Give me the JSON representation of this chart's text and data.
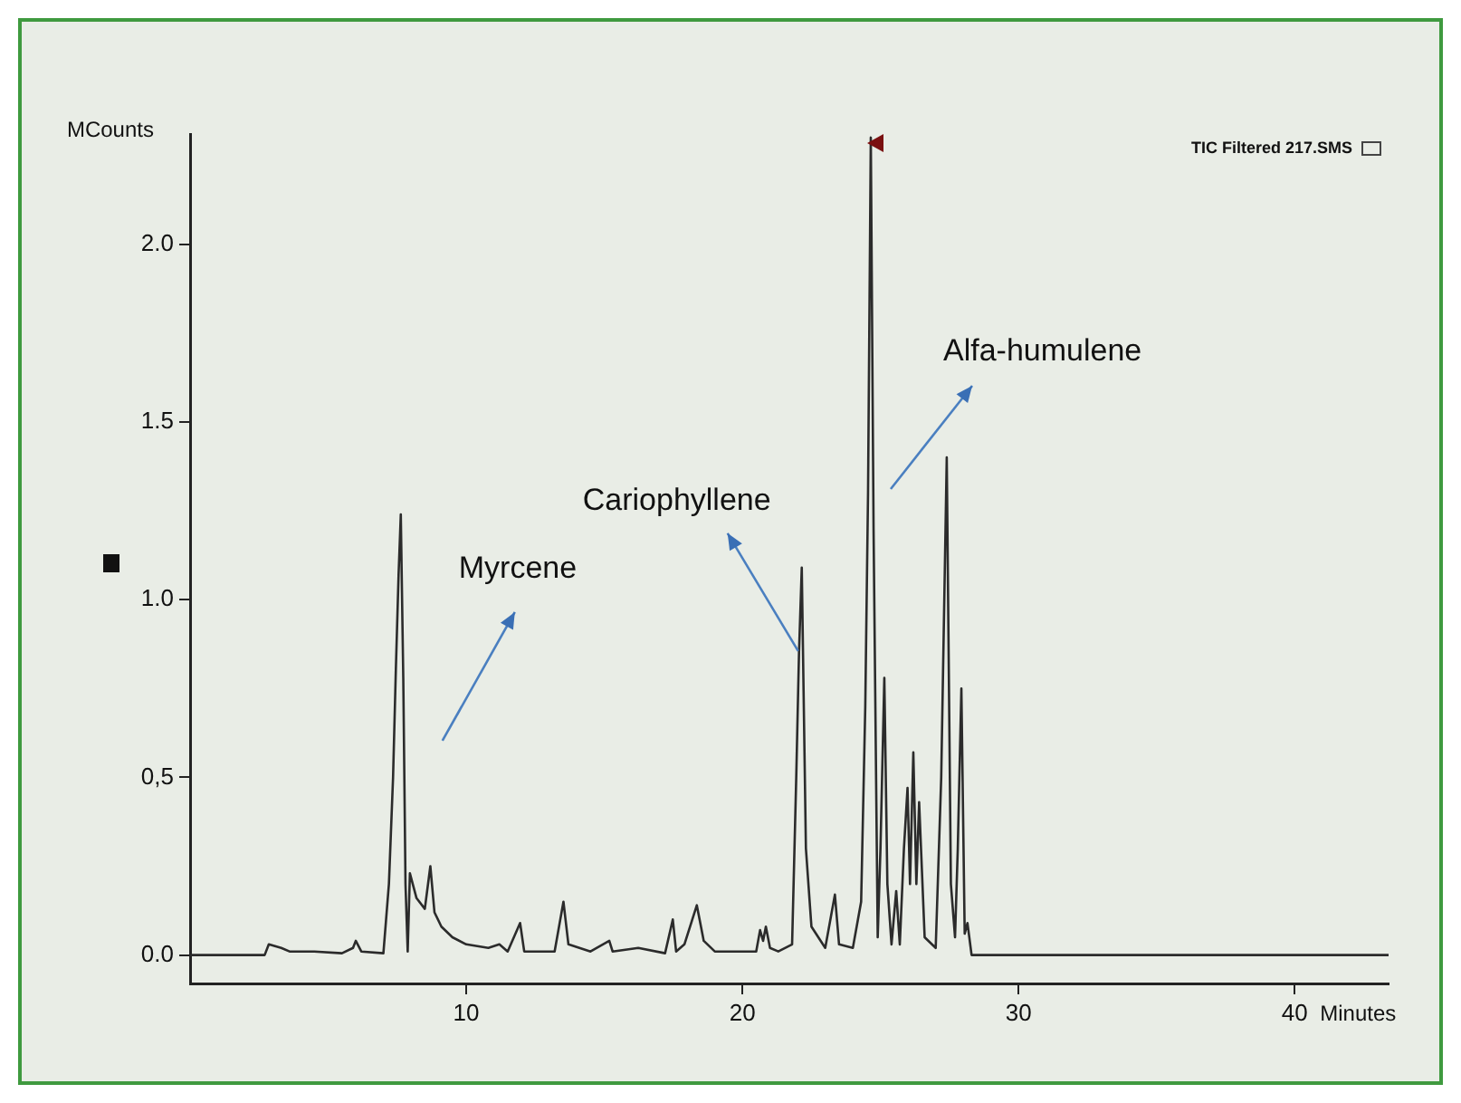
{
  "chart_data": {
    "type": "line",
    "xlabel": "Minutes",
    "ylabel": "MCounts",
    "x": [
      0,
      2.7,
      2.85,
      3.3,
      3.6,
      4.5,
      5.5,
      5.9,
      6.0,
      6.2,
      7.0,
      7.2,
      7.35,
      7.45,
      7.55,
      7.63,
      7.72,
      7.8,
      7.88,
      7.96,
      8.2,
      8.5,
      8.7,
      8.85,
      9.1,
      9.5,
      10,
      10.8,
      11.2,
      11.5,
      11.95,
      12.1,
      13.2,
      13.52,
      13.7,
      14.5,
      15.18,
      15.3,
      16.23,
      17.2,
      17.48,
      17.6,
      17.9,
      18.35,
      18.6,
      19,
      20.5,
      20.64,
      20.75,
      20.85,
      21.0,
      21.3,
      21.8,
      21.95,
      22.05,
      22.15,
      22.3,
      22.5,
      23.0,
      23.35,
      23.5,
      24.0,
      24.3,
      24.45,
      24.55,
      24.65,
      24.75,
      24.9,
      25.0,
      25.14,
      25.25,
      25.4,
      25.57,
      25.7,
      25.85,
      25.98,
      26.07,
      26.19,
      26.3,
      26.4,
      26.6,
      27.0,
      27.2,
      27.4,
      27.55,
      27.7,
      27.8,
      27.93,
      28.05,
      28.15,
      28.3,
      43.4
    ],
    "series": [
      {
        "color": "#2b2b2b",
        "values": [
          0,
          0,
          0.03,
          0.02,
          0.01,
          0.01,
          0.005,
          0.02,
          0.04,
          0.01,
          0.005,
          0.2,
          0.5,
          0.8,
          1.07,
          1.24,
          0.78,
          0.2,
          0.01,
          0.23,
          0.16,
          0.13,
          0.25,
          0.12,
          0.08,
          0.05,
          0.03,
          0.02,
          0.03,
          0.01,
          0.09,
          0.01,
          0.01,
          0.15,
          0.03,
          0.01,
          0.04,
          0.01,
          0.02,
          0.005,
          0.1,
          0.01,
          0.03,
          0.14,
          0.04,
          0.01,
          0.01,
          0.07,
          0.04,
          0.08,
          0.02,
          0.01,
          0.03,
          0.5,
          0.85,
          1.09,
          0.3,
          0.08,
          0.02,
          0.17,
          0.03,
          0.02,
          0.15,
          0.7,
          1.3,
          2.3,
          1.2,
          0.05,
          0.3,
          0.78,
          0.2,
          0.03,
          0.18,
          0.03,
          0.3,
          0.47,
          0.2,
          0.57,
          0.2,
          0.43,
          0.05,
          0.02,
          0.5,
          1.4,
          0.2,
          0.05,
          0.3,
          0.75,
          0.06,
          0.09,
          0,
          0
        ]
      }
    ],
    "xlim": [
      0,
      43.4
    ],
    "xticks": [
      10,
      20,
      30,
      40
    ],
    "ylim": [
      -0.08,
      2.31
    ],
    "yticks": [
      {
        "value": 0,
        "label": "0.0"
      },
      {
        "value": 0.5,
        "label": "0,5"
      },
      {
        "value": 1,
        "label": "1.0"
      },
      {
        "value": 1.5,
        "label": "1.5"
      },
      {
        "value": 2,
        "label": "2.0"
      }
    ],
    "grid": false,
    "legend": false,
    "marker": "none",
    "line_style": "solid",
    "annotations": [
      "TIC Filtered 217.SMS",
      {
        "text": "Myrcene",
        "x": 7.63,
        "y": 1.24
      },
      {
        "text": "Cariophyllene",
        "x": 22.15,
        "y": 1.09
      },
      "Alfa-humulene"
    ]
  }
}
